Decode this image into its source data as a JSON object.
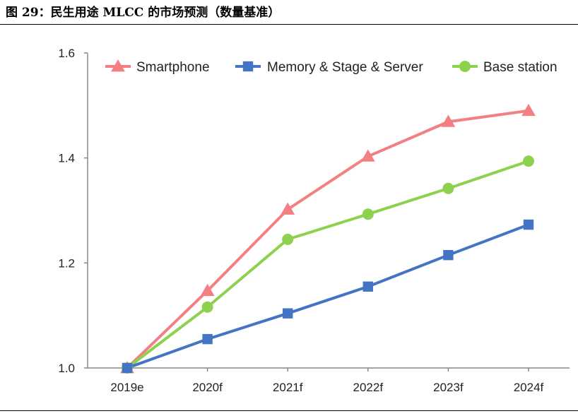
{
  "figure": {
    "title": "图 29：民生用途 MLCC 的市场预测（数量基准）"
  },
  "chart_data": {
    "type": "line",
    "title": "",
    "xlabel": "",
    "ylabel": "",
    "categories": [
      "2019e",
      "2020f",
      "2021f",
      "2022f",
      "2023f",
      "2024f"
    ],
    "ylim": [
      1.0,
      1.6
    ],
    "yticks": [
      "1.0",
      "1.2",
      "1.4",
      "1.6"
    ],
    "grid": false,
    "legend_position": "top",
    "series": [
      {
        "name": "Smartphone",
        "color": "#f47f82",
        "marker": "triangle",
        "values": [
          1.0,
          1.147,
          1.302,
          1.403,
          1.469,
          1.49
        ]
      },
      {
        "name": "Memory & Stage & Server",
        "color": "#4474c4",
        "marker": "square",
        "values": [
          1.0,
          1.055,
          1.104,
          1.155,
          1.215,
          1.273
        ]
      },
      {
        "name": "Base station",
        "color": "#8dd14e",
        "marker": "circle",
        "values": [
          1.0,
          1.116,
          1.245,
          1.293,
          1.342,
          1.394
        ]
      }
    ]
  }
}
